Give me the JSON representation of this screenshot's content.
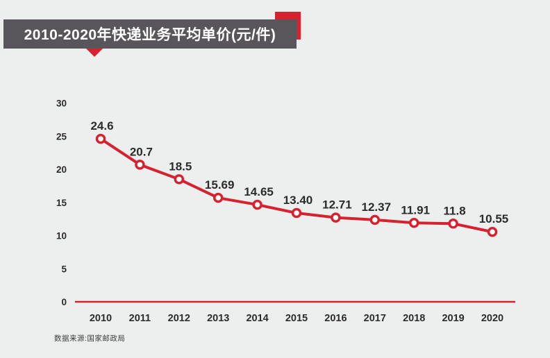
{
  "page": {
    "background": "#edeeee"
  },
  "banner": {
    "title": "2010-2020年快递业务平均单价(元/件)",
    "background": "#59565b",
    "text_color": "#ffffff"
  },
  "decorations": {
    "square_color": "#d6222f",
    "triangle_color": "#d6222f"
  },
  "source_note": "数据来源:国家邮政局",
  "colors": {
    "accent_red": "#d6222f",
    "text_dark": "#2b2b2b",
    "marker_fill": "#ffffff"
  },
  "chart_data": {
    "type": "line",
    "title": "2010-2020年快递业务平均单价(元/件)",
    "categories": [
      "2010",
      "2011",
      "2012",
      "2013",
      "2014",
      "2015",
      "2016",
      "2017",
      "2018",
      "2019",
      "2020"
    ],
    "values": [
      24.6,
      20.7,
      18.5,
      15.69,
      14.65,
      13.4,
      12.71,
      12.37,
      11.91,
      11.8,
      10.55
    ],
    "point_labels": [
      "24.6",
      "20.7",
      "18.5",
      "15.69",
      "14.65",
      "13.40",
      "12.71",
      "12.37",
      "11.91",
      "11.8",
      "10.55"
    ],
    "xlabel": "",
    "ylabel": "",
    "ylim": [
      0,
      30
    ],
    "yticks": [
      0,
      5,
      10,
      15,
      20,
      25,
      30
    ],
    "grid": false,
    "legend": "none",
    "line_color": "#d6222f",
    "marker": "circle-open",
    "baseline_color": "#d6222f"
  }
}
